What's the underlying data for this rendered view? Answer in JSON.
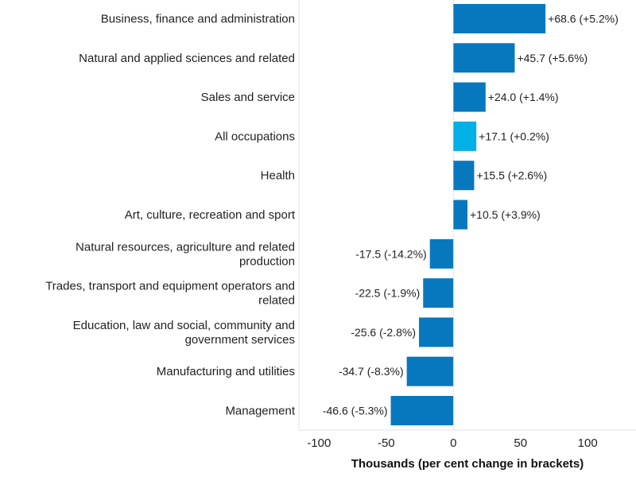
{
  "chart_data": {
    "type": "bar",
    "orientation": "horizontal",
    "categories": [
      "Business, finance and administration",
      "Natural and applied sciences and related",
      "Sales and service",
      "All occupations",
      "Health",
      "Art, culture, recreation and sport",
      "Natural resources, agriculture and related production",
      "Trades, transport and equipment operators and related",
      "Education, law and social, community and government services",
      "Manufacturing and utilities",
      "Management"
    ],
    "category_lines": [
      [
        "Business, finance and administration"
      ],
      [
        "Natural and applied sciences and related"
      ],
      [
        "Sales and service"
      ],
      [
        "All occupations"
      ],
      [
        "Health"
      ],
      [
        "Art, culture, recreation and sport"
      ],
      [
        "Natural resources, agriculture and related",
        "production"
      ],
      [
        "Trades, transport and equipment operators and",
        "related"
      ],
      [
        "Education, law and social, community and",
        "government services"
      ],
      [
        "Manufacturing and utilities"
      ],
      [
        "Management"
      ]
    ],
    "values": [
      68.6,
      45.7,
      24.0,
      17.1,
      15.5,
      10.5,
      -17.5,
      -22.5,
      -25.6,
      -34.7,
      -46.6
    ],
    "data_labels": [
      "+68.6 (+5.2%)",
      "+45.7 (+5.6%)",
      "+24.0 (+1.4%)",
      "+17.1 (+0.2%)",
      "+15.5 (+2.6%)",
      "+10.5 (+3.9%)",
      "-17.5 (-14.2%)",
      "-22.5 (-1.9%)",
      "-25.6 (-2.8%)",
      "-34.7 (-8.3%)",
      "-46.6 (-5.3%)"
    ],
    "highlight_index": 3,
    "xlabel": "Thousands (per cent change in brackets)",
    "ylabel": "",
    "xlim": [
      -115,
      136
    ],
    "xticks": [
      -100,
      -50,
      0,
      50,
      100
    ],
    "grid": false,
    "colors": {
      "bar": "#0878BE",
      "highlight": "#00B0E6",
      "axis": "#e6e6e6",
      "zero_line": "#bbbbbb"
    }
  }
}
